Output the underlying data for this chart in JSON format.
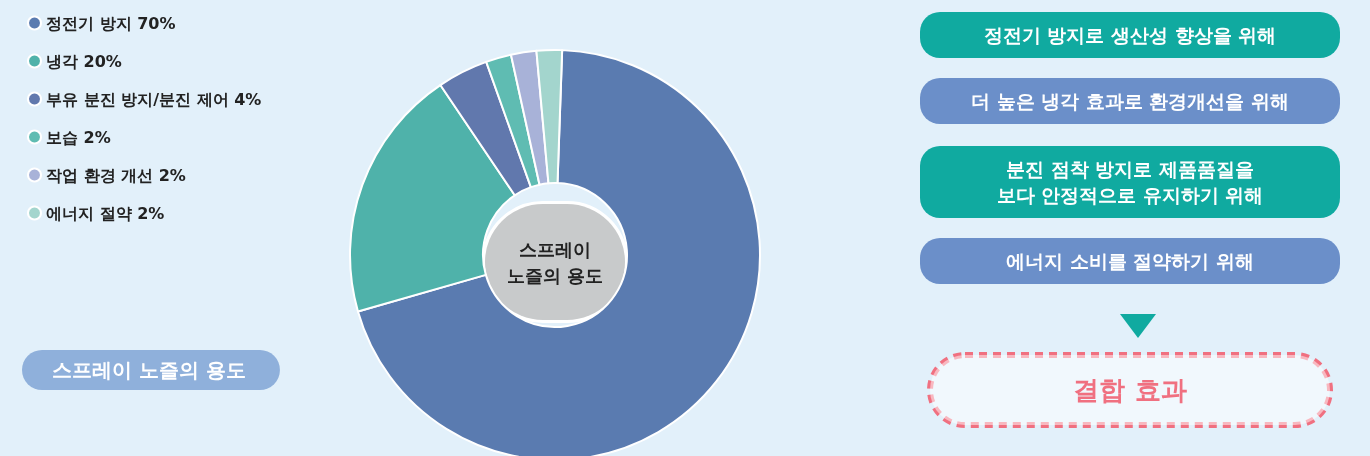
{
  "chart_data": {
    "type": "donut",
    "title": "스프레이 노즐의 용도",
    "subtitle": "스프레이\n노즐의 용도",
    "categories": [
      "정전기 방지",
      "냉각",
      "부유 분진 방지/분진 제어",
      "보습",
      "작업 환경 개선",
      "에너지 절약"
    ],
    "values": [
      70,
      20,
      4,
      2,
      2,
      2
    ],
    "value_labels": [
      "70%",
      "20%",
      "4%",
      "2%",
      "2%",
      "2%"
    ],
    "colors": [
      "#5a7bb0",
      "#4fb2aa",
      "#6178ad",
      "#5fbcb2",
      "#a8b2d8",
      "#a3d5cd"
    ],
    "legend": "top left",
    "annotations": [
      "정전기 방지로 생산성 향상을 위해",
      "더 높은 냉각 효과로 환경개선을 위해",
      "분진 점착 방지로 제품품질을\n보다 안정적으로 유지하기 위해",
      "에너지 소비를 절약하기 위해",
      "결합 효과"
    ]
  }
}
